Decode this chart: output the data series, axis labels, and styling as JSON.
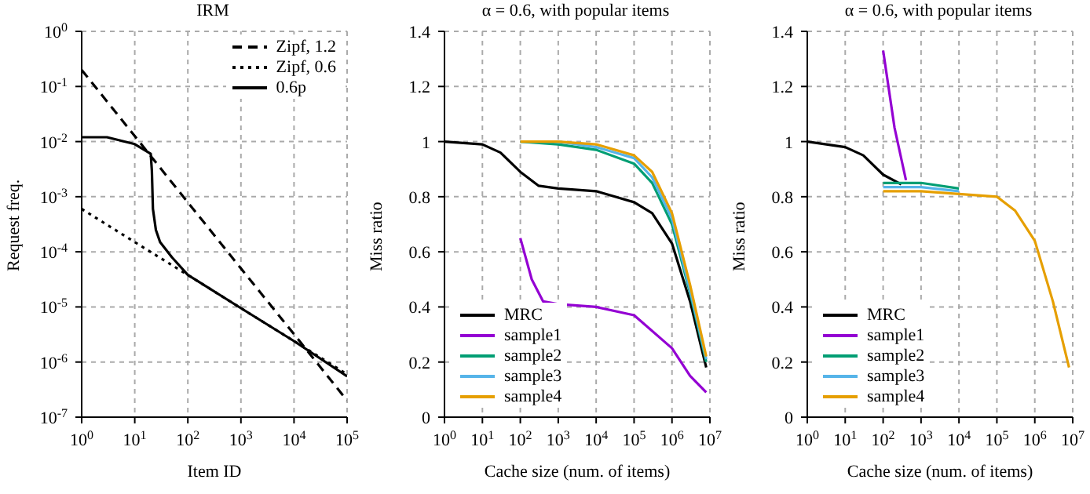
{
  "chart_data": [
    {
      "type": "line",
      "title": "IRM",
      "xlabel": "Item ID",
      "ylabel": "Request freq.",
      "log": "xy",
      "grid": true,
      "legend": "top right",
      "xlim": [
        1,
        100000
      ],
      "ylim": [
        1e-07,
        1
      ],
      "xticks": [
        {
          "value": 1,
          "label": "10$^{0}$"
        },
        {
          "value": 10,
          "label": "10$^{1}$"
        },
        {
          "value": 100,
          "label": "10$^{2}$"
        },
        {
          "value": 1000,
          "label": "10$^{3}$"
        },
        {
          "value": 10000,
          "label": "10$^{4}$"
        },
        {
          "value": 100000,
          "label": "10$^{5}$"
        }
      ],
      "yticks": [
        {
          "value": 1e-07,
          "label": "10$^{-7}$"
        },
        {
          "value": 1e-06,
          "label": "10$^{-6}$"
        },
        {
          "value": 1e-05,
          "label": "10$^{-5}$"
        },
        {
          "value": 0.0001,
          "label": "10$^{-4}$"
        },
        {
          "value": 0.001,
          "label": "10$^{-3}$"
        },
        {
          "value": 0.01,
          "label": "10$^{-2}$"
        },
        {
          "value": 0.1,
          "label": "10$^{-1}$"
        },
        {
          "value": 1,
          "label": "10$^{0}$"
        }
      ],
      "series": [
        {
          "name": "Zipf, 1.2",
          "color": "#000000",
          "line_style": "dashed",
          "x": [
            1,
            10,
            100,
            1000,
            10000,
            100000
          ],
          "values": [
            0.2,
            0.0126,
            0.00079,
            5e-05,
            3.2e-06,
            2e-07
          ]
        },
        {
          "name": "Zipf, 0.6",
          "color": "#000000",
          "line_style": "dotted",
          "x": [
            1,
            10,
            100,
            1000,
            10000,
            100000
          ],
          "values": [
            0.0006,
            0.00015,
            3.8e-05,
            9.5e-06,
            2.4e-06,
            6e-07
          ]
        },
        {
          "name": "0.6p",
          "color": "#000000",
          "line_style": "solid",
          "x": [
            1,
            3,
            10,
            20,
            21,
            22,
            25,
            30,
            50,
            100,
            1000,
            10000,
            100000
          ],
          "values": [
            0.012,
            0.012,
            0.009,
            0.006,
            0.003,
            0.0006,
            0.00025,
            0.00015,
            8e-05,
            3.8e-05,
            9.5e-06,
            2.4e-06,
            5.5e-07
          ]
        }
      ]
    },
    {
      "type": "line",
      "title": "α = 0.6, with popular items",
      "xlabel": "Cache size (num. of items)",
      "ylabel": "Miss ratio",
      "log": "x",
      "grid": true,
      "legend": "bottom left",
      "xlim": [
        1,
        10000000
      ],
      "ylim": [
        0,
        1.4
      ],
      "xticks": [
        {
          "value": 1,
          "label": "10$^{0}$"
        },
        {
          "value": 10,
          "label": "10$^{1}$"
        },
        {
          "value": 100,
          "label": "10$^{2}$"
        },
        {
          "value": 1000,
          "label": "10$^{3}$"
        },
        {
          "value": 10000,
          "label": "10$^{4}$"
        },
        {
          "value": 100000,
          "label": "10$^{5}$"
        },
        {
          "value": 1000000,
          "label": "10$^{6}$"
        },
        {
          "value": 10000000,
          "label": "10$^{7}$"
        }
      ],
      "yticks": [
        0,
        0.2,
        0.4,
        0.6,
        0.8,
        1,
        1.2,
        1.4
      ],
      "series": [
        {
          "name": "MRC",
          "color": "#000000",
          "x": [
            1,
            10,
            30,
            100,
            300,
            1000,
            10000,
            100000,
            300000,
            1000000,
            3000000,
            6000000,
            8000000
          ],
          "values": [
            1.0,
            0.99,
            0.96,
            0.89,
            0.84,
            0.83,
            0.82,
            0.78,
            0.74,
            0.63,
            0.42,
            0.25,
            0.18
          ]
        },
        {
          "name": "sample1",
          "color": "#9400d3",
          "x": [
            100,
            200,
            400,
            1000,
            10000,
            100000,
            1000000,
            3000000,
            8000000
          ],
          "values": [
            0.65,
            0.5,
            0.42,
            0.41,
            0.4,
            0.37,
            0.25,
            0.15,
            0.09
          ]
        },
        {
          "name": "sample2",
          "color": "#009e73",
          "x": [
            100,
            1000,
            10000,
            100000,
            300000,
            1000000,
            3000000,
            8000000
          ],
          "values": [
            1.0,
            0.99,
            0.97,
            0.92,
            0.85,
            0.7,
            0.45,
            0.2
          ]
        },
        {
          "name": "sample3",
          "color": "#56b4e9",
          "x": [
            100,
            1000,
            10000,
            100000,
            300000,
            1000000,
            3000000,
            8000000
          ],
          "values": [
            1.0,
            1.0,
            0.98,
            0.94,
            0.87,
            0.72,
            0.46,
            0.21
          ]
        },
        {
          "name": "sample4",
          "color": "#e69f00",
          "x": [
            100,
            1000,
            10000,
            100000,
            300000,
            1000000,
            3000000,
            8000000
          ],
          "values": [
            1.0,
            1.0,
            0.99,
            0.95,
            0.89,
            0.74,
            0.48,
            0.22
          ]
        }
      ]
    },
    {
      "type": "line",
      "title": "α = 0.6, with popular items",
      "xlabel": "Cache size (num. of items)",
      "ylabel": "Miss ratio",
      "log": "x",
      "grid": true,
      "legend": "bottom left",
      "xlim": [
        1,
        10000000
      ],
      "ylim": [
        0,
        1.4
      ],
      "xticks": [
        {
          "value": 1,
          "label": "10$^{0}$"
        },
        {
          "value": 10,
          "label": "10$^{1}$"
        },
        {
          "value": 100,
          "label": "10$^{2}$"
        },
        {
          "value": 1000,
          "label": "10$^{3}$"
        },
        {
          "value": 10000,
          "label": "10$^{4}$"
        },
        {
          "value": 100000,
          "label": "10$^{5}$"
        },
        {
          "value": 1000000,
          "label": "10$^{6}$"
        },
        {
          "value": 10000000,
          "label": "10$^{7}$"
        }
      ],
      "yticks": [
        0,
        0.2,
        0.4,
        0.6,
        0.8,
        1,
        1.2,
        1.4
      ],
      "series": [
        {
          "name": "MRC",
          "color": "#000000",
          "x": [
            1,
            10,
            30,
            100,
            300
          ],
          "values": [
            1.0,
            0.98,
            0.95,
            0.88,
            0.845
          ]
        },
        {
          "name": "sample1",
          "color": "#9400d3",
          "x": [
            100,
            200,
            400
          ],
          "values": [
            1.33,
            1.05,
            0.86
          ]
        },
        {
          "name": "sample2",
          "color": "#009e73",
          "x": [
            100,
            1000,
            10000
          ],
          "values": [
            0.85,
            0.85,
            0.83
          ]
        },
        {
          "name": "sample3",
          "color": "#56b4e9",
          "x": [
            100,
            1000,
            10000
          ],
          "values": [
            0.835,
            0.835,
            0.82
          ]
        },
        {
          "name": "sample4",
          "color": "#e69f00",
          "x": [
            100,
            1000,
            10000,
            100000,
            300000,
            1000000,
            3000000,
            8000000
          ],
          "values": [
            0.82,
            0.82,
            0.81,
            0.8,
            0.75,
            0.64,
            0.42,
            0.18
          ]
        }
      ]
    }
  ]
}
